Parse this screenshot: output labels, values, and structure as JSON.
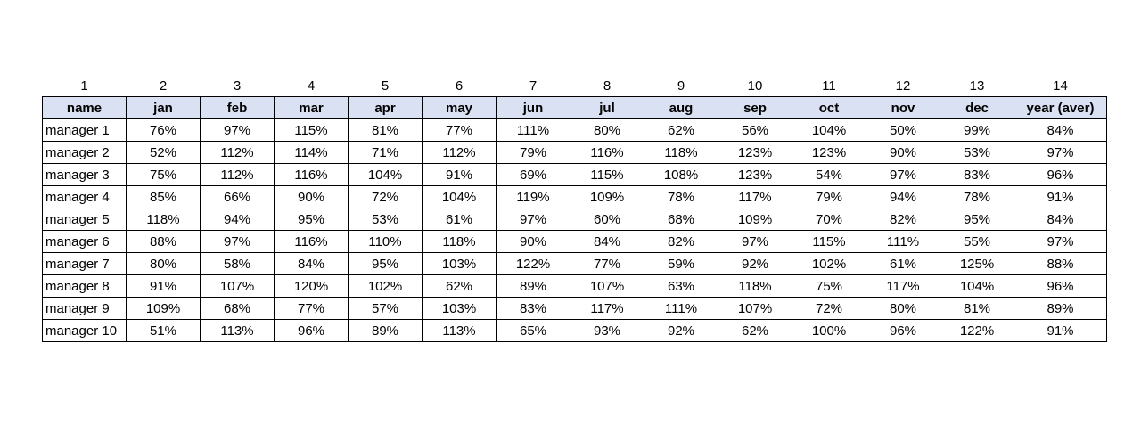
{
  "column_numbers": [
    "1",
    "2",
    "3",
    "4",
    "5",
    "6",
    "7",
    "8",
    "9",
    "10",
    "11",
    "12",
    "13",
    "14"
  ],
  "headers": [
    "name",
    "jan",
    "feb",
    "mar",
    "apr",
    "may",
    "jun",
    "jul",
    "aug",
    "sep",
    "oct",
    "nov",
    "dec",
    "year (aver)"
  ],
  "rows": [
    [
      "manager 1",
      "76%",
      "97%",
      "115%",
      "81%",
      "77%",
      "111%",
      "80%",
      "62%",
      "56%",
      "104%",
      "50%",
      "99%",
      "84%"
    ],
    [
      "manager 2",
      "52%",
      "112%",
      "114%",
      "71%",
      "112%",
      "79%",
      "116%",
      "118%",
      "123%",
      "123%",
      "90%",
      "53%",
      "97%"
    ],
    [
      "manager 3",
      "75%",
      "112%",
      "116%",
      "104%",
      "91%",
      "69%",
      "115%",
      "108%",
      "123%",
      "54%",
      "97%",
      "83%",
      "96%"
    ],
    [
      "manager 4",
      "85%",
      "66%",
      "90%",
      "72%",
      "104%",
      "119%",
      "109%",
      "78%",
      "117%",
      "79%",
      "94%",
      "78%",
      "91%"
    ],
    [
      "manager 5",
      "118%",
      "94%",
      "95%",
      "53%",
      "61%",
      "97%",
      "60%",
      "68%",
      "109%",
      "70%",
      "82%",
      "95%",
      "84%"
    ],
    [
      "manager 6",
      "88%",
      "97%",
      "116%",
      "110%",
      "118%",
      "90%",
      "84%",
      "82%",
      "97%",
      "115%",
      "111%",
      "55%",
      "97%"
    ],
    [
      "manager 7",
      "80%",
      "58%",
      "84%",
      "95%",
      "103%",
      "122%",
      "77%",
      "59%",
      "92%",
      "102%",
      "61%",
      "125%",
      "88%"
    ],
    [
      "manager 8",
      "91%",
      "107%",
      "120%",
      "102%",
      "62%",
      "89%",
      "107%",
      "63%",
      "118%",
      "75%",
      "117%",
      "104%",
      "96%"
    ],
    [
      "manager 9",
      "109%",
      "68%",
      "77%",
      "57%",
      "103%",
      "83%",
      "117%",
      "111%",
      "107%",
      "72%",
      "80%",
      "81%",
      "89%"
    ],
    [
      "manager 10",
      "51%",
      "113%",
      "96%",
      "89%",
      "113%",
      "65%",
      "93%",
      "92%",
      "62%",
      "100%",
      "96%",
      "122%",
      "91%"
    ]
  ],
  "colors": {
    "header_fill": "#d9e1f2",
    "border": "#000000"
  }
}
